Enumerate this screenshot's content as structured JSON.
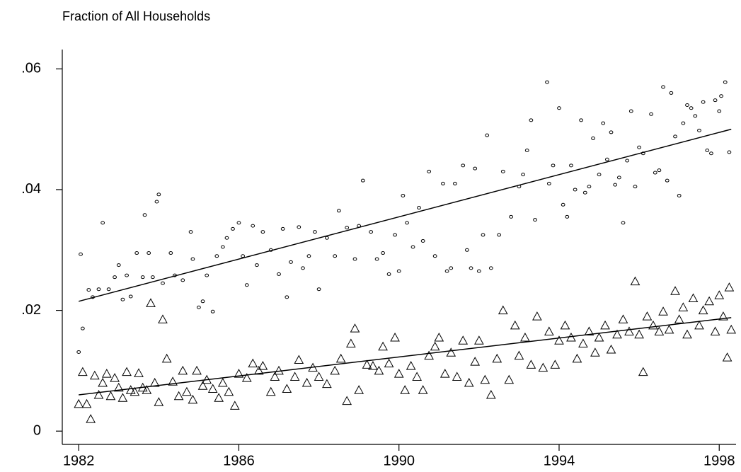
{
  "chart_data": {
    "type": "scatter",
    "title": "Fraction of All Households",
    "xlim": [
      1981.59,
      1998.42
    ],
    "ylim": [
      -0.0022,
      0.0632
    ],
    "xticks": [
      1982,
      1986,
      1990,
      1994,
      1998
    ],
    "yticks": [
      0,
      {
        "value": 0.02,
        "label": ".02"
      },
      {
        "value": 0.04,
        "label": ".04"
      },
      {
        "value": 0.06,
        "label": ".06"
      }
    ],
    "color": "#000000",
    "series": [
      {
        "marker": "circle",
        "x": [
          1982.0,
          1982.05,
          1982.1,
          1982.25,
          1982.35,
          1982.5,
          1982.6,
          1982.75,
          1982.9,
          1983.0,
          1983.1,
          1983.2,
          1983.3,
          1983.45,
          1983.6,
          1983.65,
          1983.75,
          1983.85,
          1983.95,
          1984.0,
          1984.1,
          1984.3,
          1984.4,
          1984.6,
          1984.8,
          1984.85,
          1985.0,
          1985.1,
          1985.2,
          1985.35,
          1985.45,
          1985.6,
          1985.7,
          1985.85,
          1986.0,
          1986.1,
          1986.2,
          1986.35,
          1986.45,
          1986.6,
          1986.8,
          1987.0,
          1987.1,
          1987.2,
          1987.3,
          1987.5,
          1987.6,
          1987.75,
          1987.9,
          1988.0,
          1988.2,
          1988.4,
          1988.5,
          1988.7,
          1988.9,
          1989.0,
          1989.1,
          1989.3,
          1989.45,
          1989.6,
          1989.75,
          1989.9,
          1990.0,
          1990.1,
          1990.2,
          1990.35,
          1990.5,
          1990.6,
          1990.75,
          1990.9,
          1991.1,
          1991.2,
          1991.3,
          1991.4,
          1991.6,
          1991.7,
          1991.8,
          1991.9,
          1992.0,
          1992.1,
          1992.2,
          1992.3,
          1992.5,
          1992.6,
          1992.8,
          1993.0,
          1993.1,
          1993.2,
          1993.3,
          1993.4,
          1993.7,
          1993.75,
          1993.85,
          1994.0,
          1994.1,
          1994.2,
          1994.3,
          1994.4,
          1994.55,
          1994.65,
          1994.75,
          1994.85,
          1995.0,
          1995.1,
          1995.2,
          1995.3,
          1995.4,
          1995.5,
          1995.6,
          1995.7,
          1995.8,
          1995.9,
          1996.0,
          1996.1,
          1996.3,
          1996.4,
          1996.5,
          1996.6,
          1996.7,
          1996.8,
          1996.9,
          1997.0,
          1997.1,
          1997.2,
          1997.3,
          1997.4,
          1997.5,
          1997.6,
          1997.7,
          1997.8,
          1997.9,
          1998.0,
          1998.05,
          1998.15,
          1998.25
        ],
        "values": [
          0.0131,
          0.0293,
          0.017,
          0.0234,
          0.0222,
          0.0235,
          0.0345,
          0.0235,
          0.0255,
          0.0275,
          0.0218,
          0.0258,
          0.0223,
          0.0295,
          0.0255,
          0.0358,
          0.0295,
          0.0255,
          0.038,
          0.0392,
          0.0245,
          0.0295,
          0.0258,
          0.025,
          0.033,
          0.0285,
          0.0205,
          0.0215,
          0.0258,
          0.0198,
          0.029,
          0.0305,
          0.032,
          0.0335,
          0.0345,
          0.029,
          0.0242,
          0.034,
          0.0275,
          0.033,
          0.03,
          0.026,
          0.0335,
          0.0222,
          0.028,
          0.0338,
          0.027,
          0.029,
          0.033,
          0.0235,
          0.032,
          0.029,
          0.0365,
          0.0337,
          0.0285,
          0.034,
          0.0415,
          0.033,
          0.0285,
          0.0295,
          0.026,
          0.0325,
          0.0265,
          0.039,
          0.0345,
          0.0305,
          0.037,
          0.0315,
          0.043,
          0.029,
          0.041,
          0.0265,
          0.027,
          0.041,
          0.044,
          0.03,
          0.027,
          0.0435,
          0.0265,
          0.0325,
          0.049,
          0.027,
          0.0325,
          0.043,
          0.0355,
          0.0405,
          0.0425,
          0.0465,
          0.0515,
          0.035,
          0.0578,
          0.041,
          0.044,
          0.0535,
          0.0375,
          0.0355,
          0.044,
          0.04,
          0.0515,
          0.0395,
          0.0405,
          0.0485,
          0.0425,
          0.051,
          0.045,
          0.0495,
          0.0408,
          0.042,
          0.0345,
          0.0448,
          0.053,
          0.0405,
          0.047,
          0.046,
          0.0525,
          0.0428,
          0.0432,
          0.057,
          0.0415,
          0.056,
          0.0488,
          0.039,
          0.051,
          0.054,
          0.0535,
          0.0522,
          0.0498,
          0.0545,
          0.0465,
          0.046,
          0.0548,
          0.053,
          0.0555,
          0.0578,
          0.0462
        ]
      },
      {
        "marker": "triangle",
        "x": [
          1982.0,
          1982.1,
          1982.2,
          1982.3,
          1982.4,
          1982.5,
          1982.6,
          1982.7,
          1982.8,
          1982.9,
          1983.0,
          1983.1,
          1983.2,
          1983.3,
          1983.4,
          1983.5,
          1983.6,
          1983.7,
          1983.8,
          1983.9,
          1984.0,
          1984.1,
          1984.2,
          1984.35,
          1984.5,
          1984.6,
          1984.7,
          1984.85,
          1984.95,
          1985.1,
          1985.2,
          1985.35,
          1985.5,
          1985.6,
          1985.75,
          1985.9,
          1986.0,
          1986.2,
          1986.35,
          1986.5,
          1986.6,
          1986.8,
          1986.9,
          1987.0,
          1987.2,
          1987.4,
          1987.5,
          1987.7,
          1987.85,
          1988.0,
          1988.2,
          1988.4,
          1988.55,
          1988.7,
          1988.8,
          1988.9,
          1989.0,
          1989.2,
          1989.35,
          1989.5,
          1989.6,
          1989.75,
          1989.9,
          1990.0,
          1990.15,
          1990.3,
          1990.45,
          1990.6,
          1990.75,
          1990.9,
          1991.0,
          1991.15,
          1991.3,
          1991.45,
          1991.6,
          1991.75,
          1991.9,
          1992.0,
          1992.15,
          1992.3,
          1992.45,
          1992.6,
          1992.75,
          1992.9,
          1993.0,
          1993.15,
          1993.3,
          1993.45,
          1993.6,
          1993.75,
          1993.9,
          1994.0,
          1994.15,
          1994.3,
          1994.45,
          1994.6,
          1994.75,
          1994.9,
          1995.0,
          1995.15,
          1995.3,
          1995.45,
          1995.6,
          1995.75,
          1995.9,
          1996.0,
          1996.1,
          1996.2,
          1996.35,
          1996.5,
          1996.6,
          1996.75,
          1996.9,
          1997.0,
          1997.1,
          1997.2,
          1997.35,
          1997.5,
          1997.6,
          1997.75,
          1997.9,
          1998.0,
          1998.1,
          1998.2,
          1998.25,
          1998.3
        ],
        "values": [
          0.0045,
          0.0098,
          0.0045,
          0.002,
          0.0092,
          0.006,
          0.008,
          0.0095,
          0.0058,
          0.0088,
          0.0072,
          0.0055,
          0.0098,
          0.0068,
          0.0065,
          0.0096,
          0.0072,
          0.0068,
          0.0212,
          0.008,
          0.0048,
          0.0185,
          0.012,
          0.0082,
          0.0058,
          0.01,
          0.0065,
          0.0052,
          0.01,
          0.0075,
          0.0085,
          0.007,
          0.0055,
          0.008,
          0.0065,
          0.0042,
          0.0095,
          0.0088,
          0.0112,
          0.01,
          0.0108,
          0.0065,
          0.009,
          0.01,
          0.007,
          0.009,
          0.0118,
          0.008,
          0.0105,
          0.009,
          0.0078,
          0.01,
          0.012,
          0.005,
          0.0145,
          0.017,
          0.0068,
          0.011,
          0.0108,
          0.01,
          0.014,
          0.0112,
          0.0155,
          0.0095,
          0.0068,
          0.0108,
          0.009,
          0.0068,
          0.0125,
          0.014,
          0.0155,
          0.0095,
          0.013,
          0.009,
          0.015,
          0.008,
          0.0115,
          0.015,
          0.0085,
          0.006,
          0.012,
          0.02,
          0.0085,
          0.0175,
          0.0125,
          0.0155,
          0.011,
          0.019,
          0.0105,
          0.0165,
          0.011,
          0.015,
          0.0175,
          0.0155,
          0.012,
          0.0145,
          0.0165,
          0.013,
          0.0155,
          0.0175,
          0.0135,
          0.016,
          0.0185,
          0.0165,
          0.0248,
          0.016,
          0.0098,
          0.019,
          0.0175,
          0.0165,
          0.0198,
          0.0168,
          0.0232,
          0.0185,
          0.0205,
          0.016,
          0.022,
          0.0175,
          0.02,
          0.0215,
          0.0165,
          0.0225,
          0.019,
          0.0122,
          0.0238,
          0.0168
        ]
      },
      {
        "marker": "line",
        "x": [
          1982.0,
          1998.3
        ],
        "values": [
          0.0215,
          0.05
        ]
      },
      {
        "marker": "line",
        "x": [
          1982.0,
          1998.3
        ],
        "values": [
          0.006,
          0.0188
        ]
      }
    ]
  }
}
